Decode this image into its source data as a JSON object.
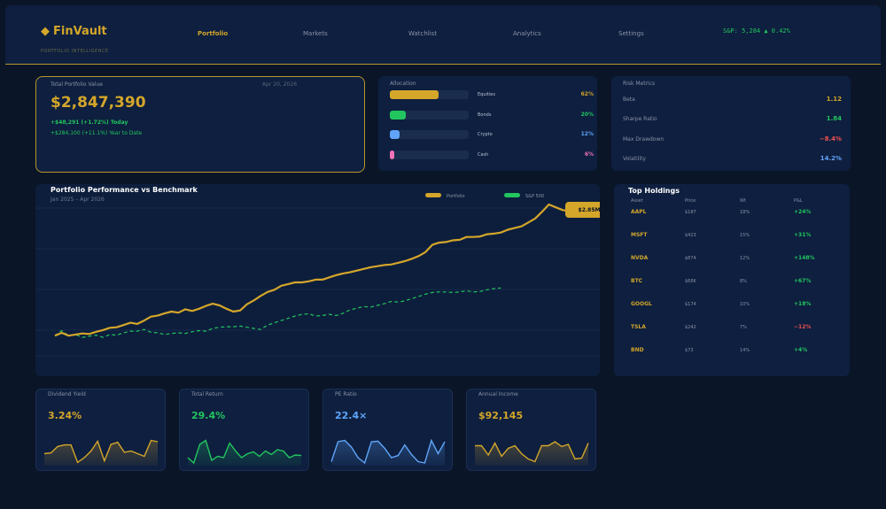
{
  "header": {
    "brand": "FinVault",
    "brand_sub": "PORTFOLIO INTELLIGENCE",
    "nav": [
      "Portfolio",
      "Markets",
      "Watchlist",
      "Analytics",
      "Settings"
    ],
    "active_nav": "Portfolio",
    "ticker": "S&P: 5,284  ▲ 0.42%"
  },
  "total_value": {
    "label": "Total Portfolio Value",
    "date": "Apr 20, 2026",
    "value": "$2,847,390",
    "today": "+$48,291  (+1.72%)  Today",
    "ytd": "+$284,100  (+11.1%)  Year to Date"
  },
  "allocation": {
    "title": "Allocation",
    "items": [
      {
        "name": "Equities",
        "pct_label": "62%",
        "share": 0.62,
        "color": "#d4a62a"
      },
      {
        "name": "Bonds",
        "pct_label": "20%",
        "share": 0.2,
        "color": "#22c55e"
      },
      {
        "name": "Crypto",
        "pct_label": "12%",
        "share": 0.12,
        "color": "#60a5fa"
      },
      {
        "name": "Cash",
        "pct_label": "6%",
        "share": 0.06,
        "color": "#f472b6"
      }
    ]
  },
  "risk": {
    "title": "Risk Metrics",
    "items": [
      {
        "name": "Beta",
        "value": "1.12",
        "color": "#d4a62a"
      },
      {
        "name": "Sharpe Ratio",
        "value": "1.84",
        "color": "#22c55e"
      },
      {
        "name": "Max Drawdown",
        "value": "−8.4%",
        "color": "#f05252"
      },
      {
        "name": "Volatility",
        "value": "14.2%",
        "color": "#60a5fa"
      }
    ]
  },
  "performance": {
    "title": "Portfolio Performance vs Benchmark",
    "subtitle": "Jan 2025 – Apr 2026",
    "tooltip": "$2.85M",
    "chart_data": {
      "type": "line",
      "series": [
        {
          "name": "Portfolio",
          "color": "#d4a62a",
          "style": "solid",
          "values": [
            36,
            41,
            36,
            38,
            40,
            39,
            43,
            46,
            50,
            51,
            55,
            59,
            57,
            63,
            70,
            72,
            76,
            79,
            77,
            83,
            80,
            84,
            89,
            93,
            90,
            84,
            79,
            81,
            92,
            99,
            107,
            114,
            118,
            125,
            128,
            131,
            131,
            133,
            136,
            136,
            140,
            144,
            147,
            149,
            152,
            155,
            158,
            160,
            162,
            163,
            166,
            169,
            173,
            178,
            185,
            198,
            202,
            203,
            206,
            207,
            212,
            212,
            213,
            217,
            218,
            220,
            225,
            228,
            231,
            238,
            245,
            257,
            270,
            265,
            260,
            258,
            255,
            255,
            252
          ]
        },
        {
          "name": "S&P 500",
          "color": "#22c55e",
          "style": "dashed",
          "values": [
            36,
            45,
            36,
            38,
            33,
            35,
            37,
            33,
            38,
            37,
            41,
            44,
            44,
            47,
            42,
            41,
            38,
            40,
            41,
            40,
            43,
            45,
            44,
            49,
            51,
            52,
            52,
            53,
            51,
            49,
            47,
            55,
            59,
            63,
            67,
            71,
            74,
            75,
            71,
            72,
            74,
            72,
            76,
            82,
            85,
            88,
            87,
            90,
            93,
            97,
            96,
            98,
            102,
            106,
            110,
            113,
            114,
            114,
            113,
            114,
            116,
            114,
            115,
            118,
            120,
            121
          ]
        }
      ],
      "y_range": [
        0,
        300
      ]
    }
  },
  "holdings": {
    "title": "Top Holdings",
    "columns": [
      "Asset",
      "Price",
      "Wt",
      "P&L"
    ],
    "rows": [
      {
        "asset": "AAPL",
        "price": "$187",
        "wt": "18%",
        "pnl": "+24%",
        "pos": true
      },
      {
        "asset": "MSFT",
        "price": "$423",
        "wt": "15%",
        "pnl": "+31%",
        "pos": true
      },
      {
        "asset": "NVDA",
        "price": "$874",
        "wt": "12%",
        "pnl": "+148%",
        "pos": true
      },
      {
        "asset": "BTC",
        "price": "$68K",
        "wt": "8%",
        "pnl": "+67%",
        "pos": true
      },
      {
        "asset": "GOOGL",
        "price": "$174",
        "wt": "10%",
        "pnl": "+18%",
        "pos": true
      },
      {
        "asset": "TSLA",
        "price": "$242",
        "wt": "7%",
        "pnl": "−12%",
        "pos": false
      },
      {
        "asset": "BND",
        "price": "$73",
        "wt": "14%",
        "pnl": "+4%",
        "pos": true
      }
    ]
  },
  "kpis": [
    {
      "label": "Dividend Yield",
      "value": "3.24%",
      "color": "#d4a62a",
      "spark": [
        0.45,
        0.48,
        0.72,
        0.78,
        0.78,
        0.12,
        0.3,
        0.55,
        0.92,
        0.18,
        0.8,
        0.88,
        0.5,
        0.55,
        0.45,
        0.35,
        0.95,
        0.9
      ]
    },
    {
      "label": "Total Return",
      "value": "29.4%",
      "color": "#22c55e",
      "spark": [
        0.3,
        0.1,
        0.8,
        0.95,
        0.2,
        0.35,
        0.3,
        0.85,
        0.55,
        0.3,
        0.45,
        0.52,
        0.35,
        0.55,
        0.42,
        0.6,
        0.55,
        0.3,
        0.4,
        0.38
      ]
    },
    {
      "label": "PE Ratio",
      "value": "22.4×",
      "color": "#60a5fa",
      "spark": [
        0.15,
        0.9,
        0.95,
        0.7,
        0.3,
        0.1,
        0.9,
        0.92,
        0.65,
        0.3,
        0.38,
        0.78,
        0.42,
        0.15,
        0.1,
        0.95,
        0.45,
        0.9
      ]
    },
    {
      "label": "Annual Income",
      "value": "$92,145",
      "color": "#d4a62a",
      "spark": [
        0.75,
        0.75,
        0.4,
        0.85,
        0.35,
        0.65,
        0.75,
        0.45,
        0.25,
        0.15,
        0.75,
        0.75,
        0.9,
        0.72,
        0.8,
        0.25,
        0.28,
        0.85
      ]
    }
  ]
}
